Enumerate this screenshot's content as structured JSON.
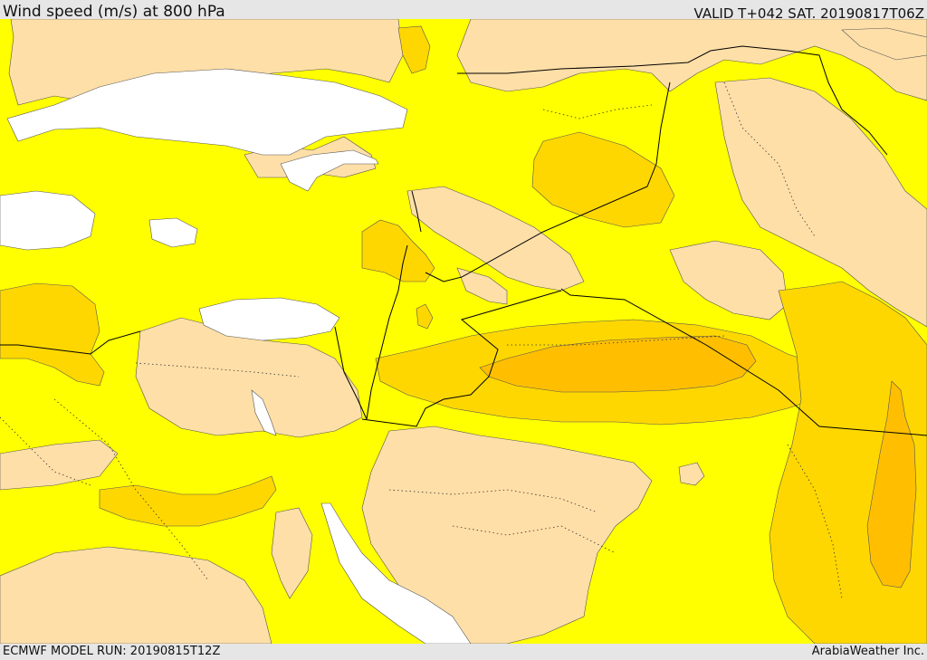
{
  "header": {
    "title": "Wind speed (m/s) at 800 hPa",
    "valid": "VALID T+042 SAT. 20190817T06Z"
  },
  "footer": {
    "model_run": "ECMWF MODEL RUN: 20190815T12Z",
    "credit": "ArabiaWeather Inc."
  },
  "map": {
    "variable": "Wind speed",
    "units": "m/s",
    "level_hpa": 800,
    "colors": {
      "calm": "#ffffff",
      "light": "#ffdfa8",
      "moderate": "#ffff00",
      "fresh": "#ffd700",
      "strong": "#ffbf00",
      "boundary": "#000000"
    }
  }
}
